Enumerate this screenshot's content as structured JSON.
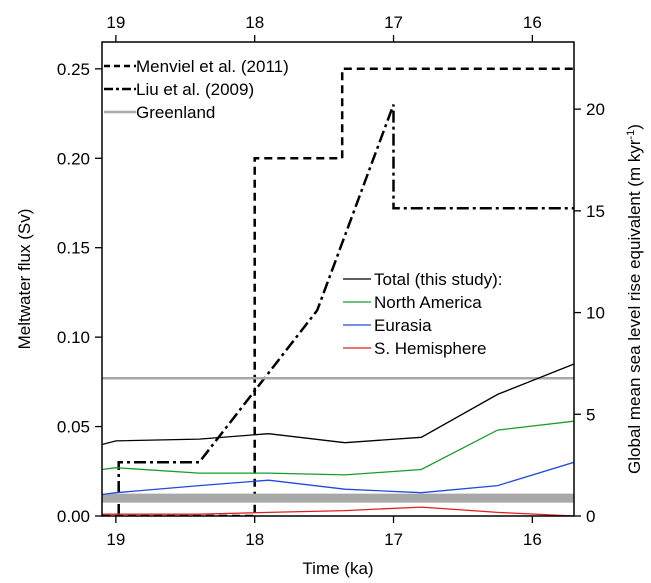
{
  "chart_data": {
    "type": "line",
    "xlabel": "Time (ka)",
    "ylabel": "Meltwater flux (Sv)",
    "y2label": "Global mean sea level rise equivalent (m kyr",
    "y2label_sup": "-1",
    "y2label_close": ")",
    "xlim": [
      19.1,
      15.7
    ],
    "ylim": [
      0,
      0.265
    ],
    "y2lim": [
      0,
      23.3
    ],
    "xticks": [
      19,
      18,
      17,
      16
    ],
    "xtick_labels": [
      "19",
      "18",
      "17",
      "16"
    ],
    "yticks": [
      0,
      0.05,
      0.1,
      0.15,
      0.2,
      0.25
    ],
    "ytick_labels": [
      "0.00",
      "0.05",
      "0.10",
      "0.15",
      "0.20",
      "0.25"
    ],
    "y2ticks": [
      0,
      5,
      10,
      15,
      20
    ],
    "y2tick_labels": [
      "0",
      "5",
      "10",
      "15",
      "20"
    ],
    "grid": false,
    "legend_top": [
      {
        "label": "Menviel et al. (2011)",
        "style": "dashed",
        "color": "#000000"
      },
      {
        "label": "Liu et al. (2009)",
        "style": "dashdot",
        "color": "#000000"
      },
      {
        "label": "Greenland",
        "style": "solid",
        "color": "#a8a8a8"
      }
    ],
    "legend_bottom": [
      {
        "label": "Total (this study):",
        "style": "solid",
        "color": "#000000"
      },
      {
        "label": "North America",
        "style": "solid",
        "color": "#1a9c2c"
      },
      {
        "label": "Eurasia",
        "style": "solid",
        "color": "#2347e0"
      },
      {
        "label": "S. Hemisphere",
        "style": "solid",
        "color": "#e02020"
      }
    ],
    "series": [
      {
        "name": "Menviel et al. (2011)",
        "style": "dashed",
        "color": "#000000",
        "width": 2.5,
        "x": [
          19.1,
          18.98,
          18.98,
          18.0,
          18.0,
          17.37,
          17.37,
          15.7
        ],
        "y": [
          0.0,
          0.0,
          0.0,
          0.0,
          0.2,
          0.2,
          0.25,
          0.25
        ]
      },
      {
        "name": "Liu et al. (2009)",
        "style": "dashdot",
        "color": "#000000",
        "width": 2.5,
        "x": [
          18.98,
          18.98,
          18.4,
          17.55,
          17.0,
          17.0,
          15.7
        ],
        "y": [
          0.0,
          0.03,
          0.03,
          0.115,
          0.23,
          0.172,
          0.172
        ]
      },
      {
        "name": "Greenland",
        "style": "solid",
        "color": "#a8a8a8",
        "width": 2.5,
        "x": [
          19.1,
          15.7
        ],
        "y": [
          0.077,
          0.077
        ]
      },
      {
        "name": "Greenland",
        "style": "solid",
        "color": "#a8a8a8",
        "width": 9,
        "x": [
          19.1,
          15.7
        ],
        "y": [
          0.01,
          0.01
        ]
      },
      {
        "name": "Total (this study)",
        "style": "solid",
        "color": "#000000",
        "width": 1.3,
        "x": [
          19.1,
          19.0,
          18.4,
          17.9,
          17.35,
          16.8,
          16.25,
          15.7
        ],
        "y": [
          0.04,
          0.042,
          0.043,
          0.046,
          0.041,
          0.044,
          0.068,
          0.085
        ]
      },
      {
        "name": "North America",
        "style": "solid",
        "color": "#1a9c2c",
        "width": 1.3,
        "x": [
          19.1,
          19.0,
          18.4,
          17.9,
          17.35,
          16.8,
          16.25,
          15.7
        ],
        "y": [
          0.026,
          0.027,
          0.024,
          0.024,
          0.023,
          0.026,
          0.048,
          0.053
        ]
      },
      {
        "name": "Eurasia",
        "style": "solid",
        "color": "#2347e0",
        "width": 1.3,
        "x": [
          19.1,
          19.0,
          18.4,
          17.9,
          17.35,
          16.8,
          16.25,
          15.7
        ],
        "y": [
          0.012,
          0.013,
          0.017,
          0.02,
          0.015,
          0.013,
          0.017,
          0.03
        ]
      },
      {
        "name": "S. Hemisphere",
        "style": "solid",
        "color": "#e02020",
        "width": 1.3,
        "x": [
          19.1,
          19.0,
          18.4,
          17.9,
          17.35,
          16.8,
          16.25,
          15.7
        ],
        "y": [
          0.001,
          0.001,
          0.001,
          0.002,
          0.003,
          0.005,
          0.002,
          0.0
        ]
      }
    ]
  }
}
